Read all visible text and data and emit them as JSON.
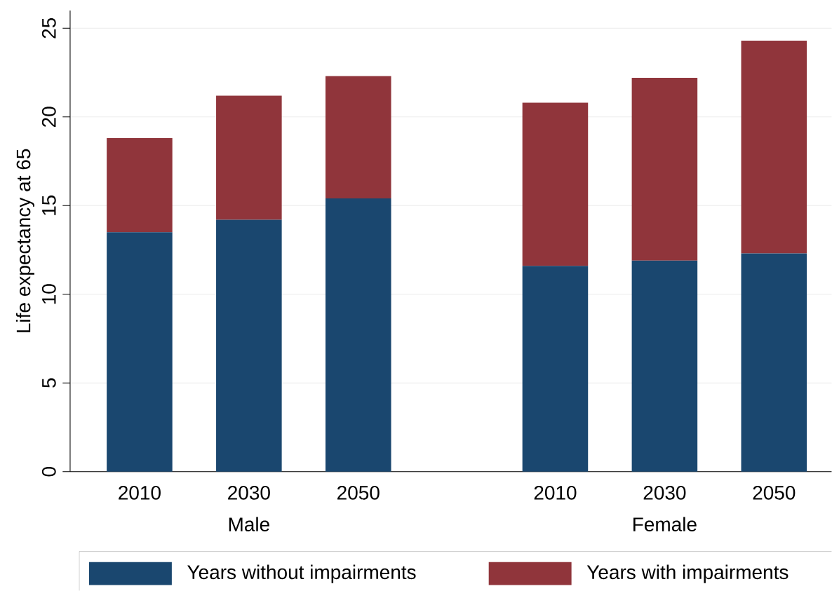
{
  "chart_data": {
    "type": "bar",
    "stacked": true,
    "ylabel": "Life expectancy at 65",
    "categories": [
      "2010",
      "2030",
      "2050",
      "2010",
      "2030",
      "2050"
    ],
    "series": [
      {
        "name": "Years without impairments",
        "color": "#1a476f",
        "values": [
          13.5,
          14.2,
          15.4,
          11.6,
          11.9,
          12.3
        ]
      },
      {
        "name": "Years with impairments",
        "color": "#90353b",
        "values": [
          5.3,
          7.0,
          6.9,
          9.2,
          10.3,
          12.0
        ]
      }
    ],
    "annotations": [
      "Male",
      "Female"
    ],
    "ylim": [
      0,
      26
    ],
    "yticks": [
      0,
      5,
      10,
      15,
      20,
      25
    ],
    "grid": "y",
    "legend": "bottom"
  }
}
